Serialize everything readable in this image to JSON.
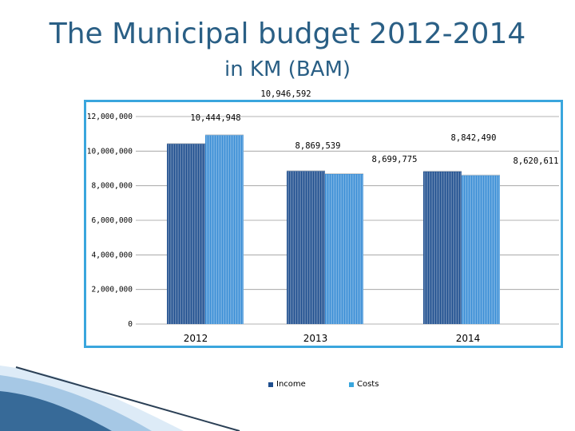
{
  "header": {
    "title": "The Municipal budget 2012-2014",
    "subtitle": "in KM (BAM)"
  },
  "colors": {
    "accent": "#3aa6dd",
    "title": "#2a5f85",
    "income": "#1f4f8f",
    "costs": "#3b8ed6"
  },
  "chart_data": {
    "type": "bar",
    "title": "",
    "xlabel": "",
    "ylabel": "",
    "categories": [
      "2012",
      "2013",
      "2014"
    ],
    "series": [
      {
        "name": "Income",
        "values": [
          10444948,
          8869539,
          8842490
        ],
        "labels": [
          "10,444,948",
          "8,869,539",
          "8,842,490"
        ]
      },
      {
        "name": "Costs",
        "values": [
          10946592,
          8699775,
          8620611
        ],
        "labels": [
          "10,946,592",
          "8,699,775",
          "8,620,611"
        ]
      }
    ],
    "yticks": [
      0,
      2000000,
      4000000,
      6000000,
      8000000,
      10000000,
      12000000
    ],
    "ytick_labels": [
      "0",
      "2,000,000",
      "4,000,000",
      "6,000,000",
      "8,000,000",
      "10,000,000",
      "12,000,000"
    ],
    "ylim": [
      0,
      12000000
    ],
    "grid": true,
    "legend": "bottom"
  }
}
